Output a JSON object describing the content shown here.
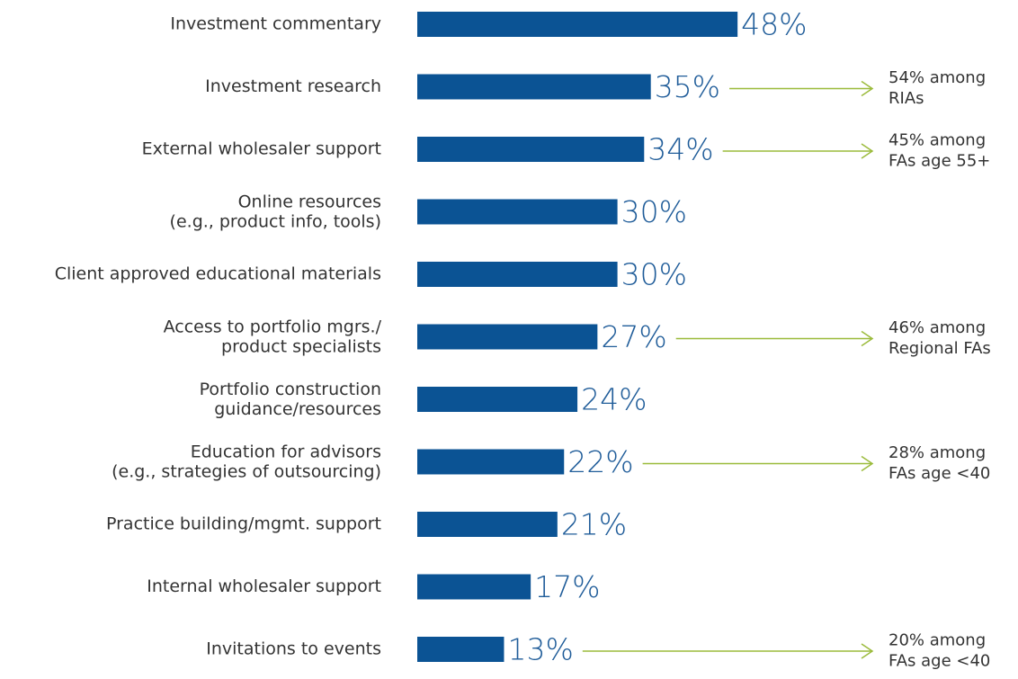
{
  "chart_data": {
    "type": "bar",
    "orientation": "horizontal",
    "color": "#0b5394",
    "arrow_color": "#9bbb3b",
    "categories": [
      "Investment commentary",
      "Investment research",
      "External wholesaler support",
      "Online resources\n(e.g., product info, tools)",
      "Client approved educational materials",
      "Access to portfolio mgrs./\nproduct specialists",
      "Portfolio construction\nguidance/resources",
      "Education for advisors\n(e.g., strategies of outsourcing)",
      "Practice building/mgmt. support",
      "Internal wholesaler support",
      "Invitations to events"
    ],
    "values": [
      48,
      35,
      34,
      30,
      30,
      27,
      24,
      22,
      21,
      17,
      13
    ],
    "value_labels": [
      "48%",
      "35%",
      "34%",
      "30%",
      "30%",
      "27%",
      "24%",
      "22%",
      "21%",
      "17%",
      "13%"
    ],
    "annotations": [
      null,
      "54% among\nRIAs",
      "45% among\nFAs age 55+",
      null,
      null,
      "46% among\nRegional FAs",
      null,
      "28% among\nFAs age <40",
      null,
      null,
      "20% among\nFAs age <40"
    ]
  }
}
